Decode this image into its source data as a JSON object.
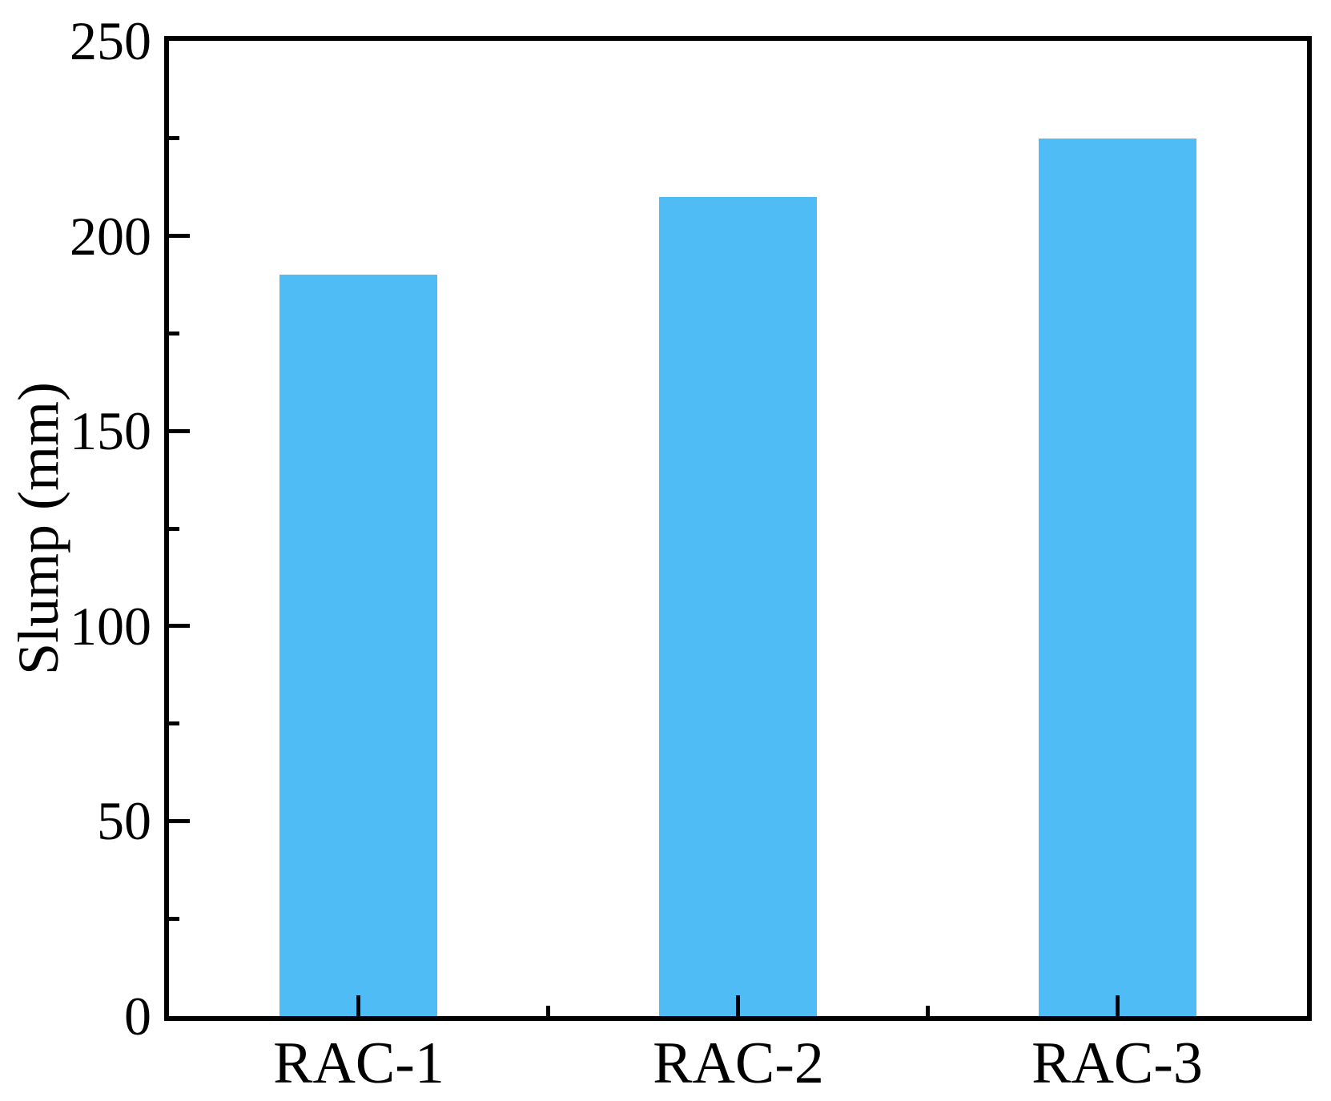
{
  "chart_data": {
    "type": "bar",
    "categories": [
      "RAC-1",
      "RAC-2",
      "RAC-3"
    ],
    "values": [
      190,
      210,
      225
    ],
    "title": "",
    "xlabel": "",
    "ylabel": "Slump (mm)",
    "ylim": [
      0,
      250
    ],
    "yticks_major": [
      0,
      50,
      100,
      150,
      200,
      250
    ],
    "yticks_minor": [
      25,
      75,
      125,
      175,
      225
    ],
    "bar_color": "#50BCF5",
    "axis_color": "#000000",
    "background": "#FFFFFF",
    "grid": false,
    "legend_position": "none"
  }
}
